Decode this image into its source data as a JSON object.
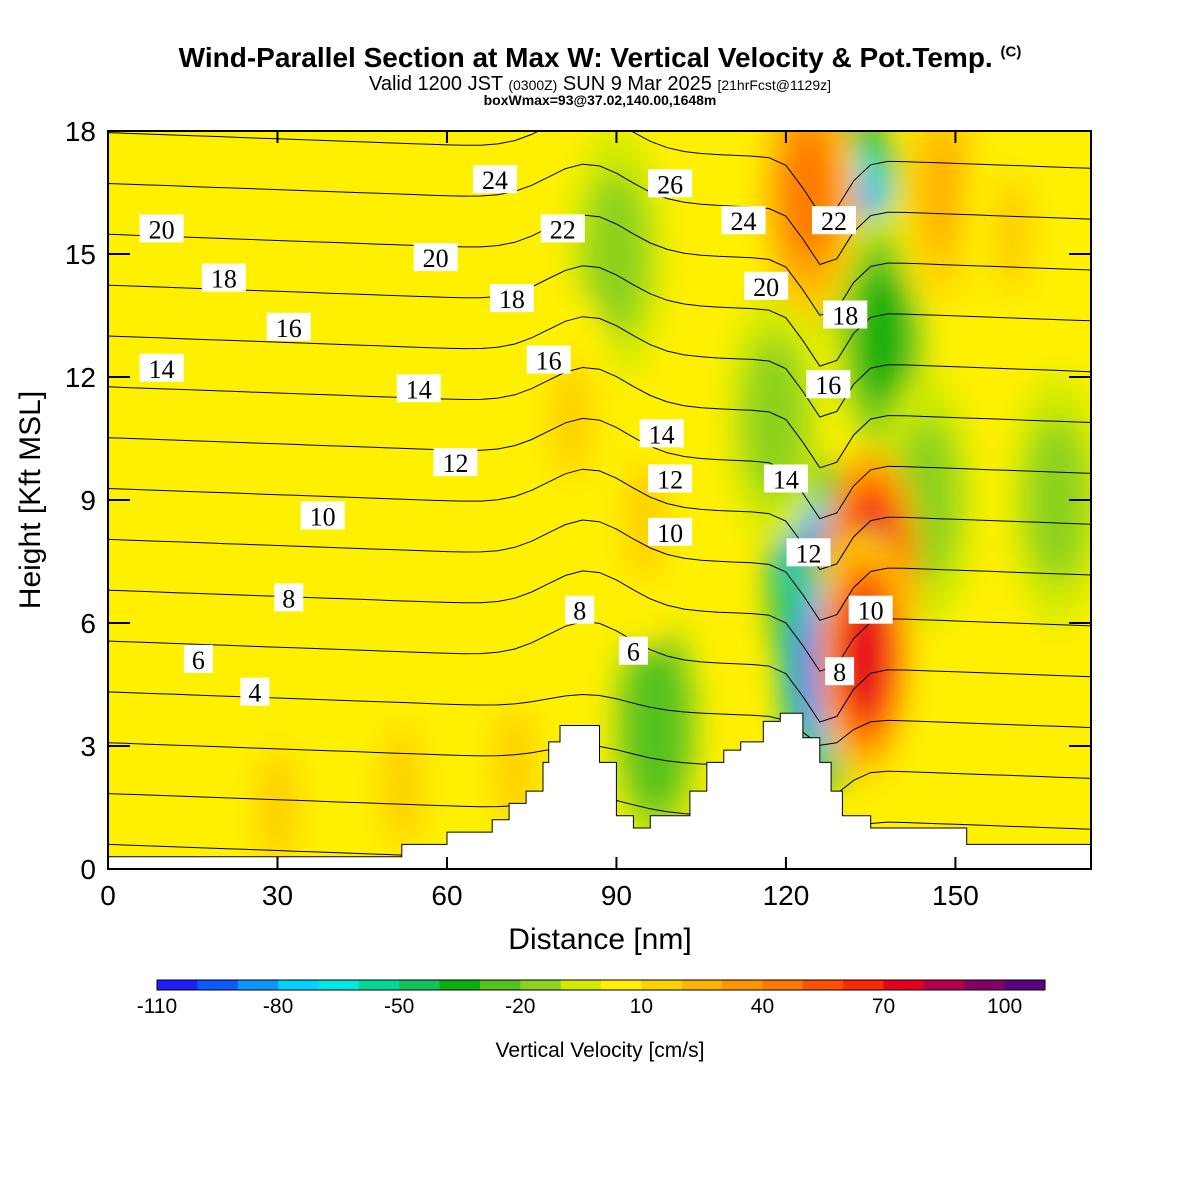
{
  "title": {
    "main": "Wind-Parallel Section at Max W: Vertical Velocity & Pot.Temp.",
    "copyright": "(C)",
    "valid_prefix": "Valid 1200 JST",
    "valid_utc": "(0300Z)",
    "valid_date": "SUN 9 Mar 2025",
    "forecast": "[21hrFcst@1129z]",
    "box_info": "boxWmax=93@37.02,140.00,1648m"
  },
  "chart_data": {
    "type": "heatmap",
    "xlabel": "Distance [nm]",
    "ylabel": "Height [Kft MSL]",
    "xlim": [
      0,
      174
    ],
    "ylim": [
      0,
      18
    ],
    "x_ticks": [
      0,
      30,
      60,
      90,
      120,
      150
    ],
    "y_ticks": [
      0,
      3,
      6,
      9,
      12,
      15,
      18
    ],
    "colorbar": {
      "title": "Vertical Velocity [cm/s]",
      "tick_labels": [
        -110,
        -80,
        -50,
        -20,
        10,
        40,
        70,
        100
      ],
      "levels": [
        -110,
        -100,
        -90,
        -80,
        -70,
        -60,
        -50,
        -40,
        -30,
        -20,
        -10,
        0,
        10,
        20,
        30,
        40,
        50,
        60,
        70,
        80,
        90,
        100,
        110
      ],
      "colors": [
        "#1e1eff",
        "#0a5aff",
        "#0a96ff",
        "#00d2ff",
        "#00e8e0",
        "#00d89a",
        "#10c35a",
        "#0aae0a",
        "#55c21e",
        "#8cd21e",
        "#d2eb00",
        "#fff000",
        "#ffd200",
        "#ffb400",
        "#ff9600",
        "#ff7800",
        "#ff5000",
        "#ff2800",
        "#e6001e",
        "#b4004b",
        "#820064",
        "#5a0082"
      ]
    },
    "background_w": 0,
    "updrafts_w": [
      {
        "x": 135,
        "y": 7.2,
        "w": 85
      },
      {
        "x": 134,
        "y": 5.2,
        "w": 70
      },
      {
        "x": 124,
        "y": 16.5,
        "w": 40
      },
      {
        "x": 82,
        "y": 11,
        "w": 10
      },
      {
        "x": 95,
        "y": 8.5,
        "w": 12
      },
      {
        "x": 52,
        "y": 2,
        "w": 10
      },
      {
        "x": 30,
        "y": 1.5,
        "w": 10
      },
      {
        "x": 72,
        "y": 2.5,
        "w": 10
      },
      {
        "x": 148,
        "y": 16.5,
        "w": 20
      },
      {
        "x": 160,
        "y": 15.5,
        "w": 10
      }
    ],
    "downdrafts_w": [
      {
        "x": 125,
        "y": 7,
        "w": -100
      },
      {
        "x": 127,
        "y": 5,
        "w": -110
      },
      {
        "x": 133,
        "y": 15.5,
        "w": -85
      },
      {
        "x": 137,
        "y": 13,
        "w": -40
      },
      {
        "x": 90,
        "y": 15,
        "w": -20
      },
      {
        "x": 97,
        "y": 3.5,
        "w": -30
      },
      {
        "x": 118,
        "y": 11,
        "w": -20
      },
      {
        "x": 145,
        "y": 9,
        "w": -20
      },
      {
        "x": 168,
        "y": 9,
        "w": -15
      }
    ],
    "theta_contours": {
      "variable": "Pot.Temp.",
      "levels": [
        0,
        2,
        4,
        6,
        8,
        10,
        12,
        14,
        16,
        18,
        20,
        22,
        24,
        26,
        28
      ],
      "labels": [
        {
          "text": "20",
          "x": 9.5,
          "y": 15.6
        },
        {
          "text": "18",
          "x": 20.5,
          "y": 14.4
        },
        {
          "text": "16",
          "x": 32,
          "y": 13.2
        },
        {
          "text": "14",
          "x": 9.5,
          "y": 12.2
        },
        {
          "text": "24",
          "x": 68.5,
          "y": 16.8
        },
        {
          "text": "22",
          "x": 80.5,
          "y": 15.6
        },
        {
          "text": "20",
          "x": 58,
          "y": 14.9
        },
        {
          "text": "18",
          "x": 71.5,
          "y": 13.9
        },
        {
          "text": "16",
          "x": 78,
          "y": 12.4
        },
        {
          "text": "14",
          "x": 55,
          "y": 11.7
        },
        {
          "text": "12",
          "x": 61.5,
          "y": 9.9
        },
        {
          "text": "10",
          "x": 38,
          "y": 8.6
        },
        {
          "text": "8",
          "x": 32,
          "y": 6.6
        },
        {
          "text": "6",
          "x": 16,
          "y": 5.1
        },
        {
          "text": "4",
          "x": 26,
          "y": 4.3
        },
        {
          "text": "26",
          "x": 99.5,
          "y": 16.7
        },
        {
          "text": "24",
          "x": 112.5,
          "y": 15.8
        },
        {
          "text": "20",
          "x": 116.5,
          "y": 14.2
        },
        {
          "text": "14",
          "x": 98,
          "y": 10.6
        },
        {
          "text": "12",
          "x": 99.5,
          "y": 9.5
        },
        {
          "text": "10",
          "x": 99.5,
          "y": 8.2
        },
        {
          "text": "8",
          "x": 83.5,
          "y": 6.3
        },
        {
          "text": "6",
          "x": 93,
          "y": 5.3
        },
        {
          "text": "22",
          "x": 128.5,
          "y": 15.8
        },
        {
          "text": "18",
          "x": 130.5,
          "y": 13.5
        },
        {
          "text": "16",
          "x": 127.5,
          "y": 11.8
        },
        {
          "text": "14",
          "x": 120,
          "y": 9.5
        },
        {
          "text": "12",
          "x": 124,
          "y": 7.7
        },
        {
          "text": "10",
          "x": 135,
          "y": 6.3
        },
        {
          "text": "8",
          "x": 129.5,
          "y": 4.8
        }
      ]
    },
    "terrain_kft": [
      [
        0,
        0.3
      ],
      [
        52,
        0.3
      ],
      [
        52,
        0.6
      ],
      [
        60,
        0.6
      ],
      [
        60,
        0.9
      ],
      [
        68,
        0.9
      ],
      [
        68,
        1.2
      ],
      [
        71,
        1.2
      ],
      [
        71,
        1.6
      ],
      [
        74,
        1.6
      ],
      [
        74,
        1.9
      ],
      [
        77,
        1.9
      ],
      [
        77,
        2.6
      ],
      [
        78,
        2.6
      ],
      [
        78,
        3.1
      ],
      [
        80,
        3.1
      ],
      [
        80,
        3.5
      ],
      [
        87,
        3.5
      ],
      [
        87,
        2.6
      ],
      [
        90,
        2.6
      ],
      [
        90,
        1.3
      ],
      [
        93,
        1.3
      ],
      [
        93,
        1.0
      ],
      [
        96,
        1.0
      ],
      [
        96,
        1.3
      ],
      [
        103,
        1.3
      ],
      [
        103,
        1.9
      ],
      [
        106,
        1.9
      ],
      [
        106,
        2.6
      ],
      [
        109,
        2.6
      ],
      [
        109,
        2.9
      ],
      [
        112,
        2.9
      ],
      [
        112,
        3.1
      ],
      [
        116,
        3.1
      ],
      [
        116,
        3.6
      ],
      [
        119,
        3.6
      ],
      [
        119,
        3.8
      ],
      [
        123,
        3.8
      ],
      [
        123,
        3.2
      ],
      [
        126,
        3.2
      ],
      [
        126,
        2.6
      ],
      [
        128,
        2.6
      ],
      [
        128,
        1.9
      ],
      [
        130,
        1.9
      ],
      [
        130,
        1.3
      ],
      [
        135,
        1.3
      ],
      [
        135,
        1.0
      ],
      [
        152,
        1.0
      ],
      [
        152,
        0.6
      ],
      [
        174,
        0.6
      ]
    ]
  }
}
